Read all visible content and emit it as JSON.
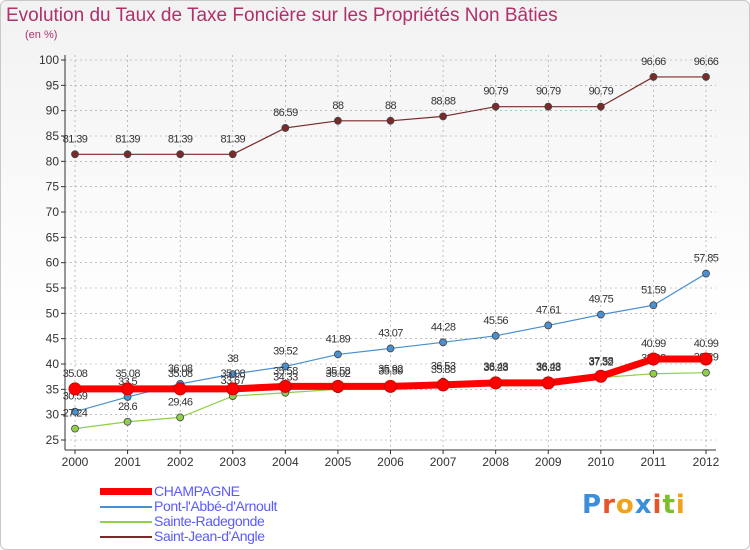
{
  "title": "Evolution du Taux de Taxe Foncière sur les Propriétés Non Bâties",
  "unit_label": "(en %)",
  "logo_text": "Proxiti",
  "colors": {
    "title": "#b0306a",
    "legend_text": "#5a5aff",
    "grid": "#999999"
  },
  "chart_data": {
    "type": "line",
    "title": "Evolution du Taux de Taxe Foncière sur les Propriétés Non Bâties",
    "ylabel": "(en %)",
    "xlabel": "",
    "ylim": [
      25,
      100
    ],
    "yticks": [
      25,
      30,
      35,
      40,
      45,
      50,
      55,
      60,
      65,
      70,
      75,
      80,
      85,
      90,
      95,
      100
    ],
    "categories": [
      "2000",
      "2001",
      "2002",
      "2003",
      "2004",
      "2005",
      "2006",
      "2007",
      "2008",
      "2009",
      "2010",
      "2011",
      "2012"
    ],
    "series": [
      {
        "name": "Saint-Jean-d'Angle",
        "color": "#7a2a2a",
        "width": 1.2,
        "values": [
          81.39,
          81.39,
          81.39,
          81.39,
          86.59,
          88,
          88,
          88.88,
          90.79,
          90.79,
          90.79,
          96.66,
          96.66
        ],
        "labels": [
          "81.39",
          "81.39",
          "81.39",
          "81.39",
          "86.59",
          "88",
          "88",
          "88.88",
          "90.79",
          "90.79",
          "90.79",
          "96.66",
          "96.66"
        ]
      },
      {
        "name": "Pont-l'Abbé-d'Arnoult",
        "color": "#4a90d0",
        "width": 1.2,
        "values": [
          30.59,
          33.5,
          36.08,
          38,
          39.52,
          41.89,
          43.07,
          44.28,
          45.56,
          47.61,
          49.75,
          51.59,
          57.85
        ],
        "labels": [
          "30.59",
          "33.5",
          "36.08",
          "38",
          "39.52",
          "41.89",
          "43.07",
          "44.28",
          "45.56",
          "47.61",
          "49.75",
          "51.59",
          "57.85"
        ]
      },
      {
        "name": "Sainte-Radegonde",
        "color": "#8ed04a",
        "width": 1.2,
        "values": [
          27.24,
          28.6,
          29.46,
          33.67,
          34.33,
          35.02,
          35.92,
          36.53,
          36.43,
          36.43,
          37.32,
          38.08,
          38.29
        ],
        "labels": [
          "27.24",
          "28.6",
          "29.46",
          "33.67",
          "34.33",
          "35.02",
          "35.92",
          "36.53",
          "36.43",
          "36.43",
          "37.32",
          "38.08",
          "38.29"
        ]
      },
      {
        "name": "CHAMPAGNE",
        "color": "#ff0000",
        "width": 7,
        "values": [
          35.08,
          35.08,
          35.08,
          35.08,
          35.58,
          35.58,
          35.59,
          35.88,
          36.28,
          36.28,
          37.58,
          40.99,
          40.99
        ],
        "labels": [
          "35.08",
          "35.08",
          "35.08",
          "35.08",
          "35.58",
          "35.58",
          "35.59",
          "35.88",
          "36.28",
          "36.28",
          "37.58",
          "40.99",
          "40.99"
        ]
      }
    ],
    "legend": [
      "CHAMPAGNE",
      "Pont-l'Abbé-d'Arnoult",
      "Sainte-Radegonde",
      "Saint-Jean-d'Angle"
    ]
  }
}
